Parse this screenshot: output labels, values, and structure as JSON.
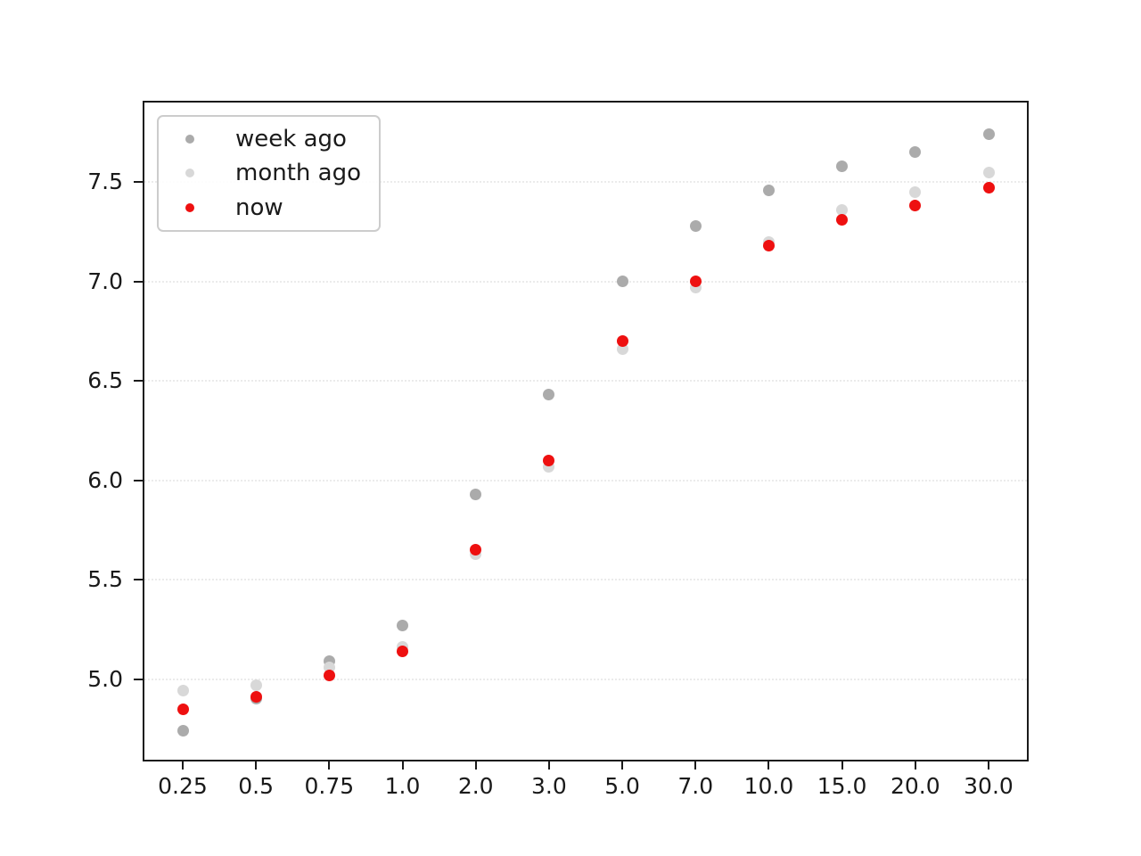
{
  "figure": {
    "background": "#ffffff",
    "frame_color": "#1a1a1a",
    "gridline_color": "#ebebeb"
  },
  "chart_data": {
    "type": "scatter",
    "title": "",
    "xlabel": "",
    "ylabel": "",
    "categories": [
      "0.25",
      "0.5",
      "0.75",
      "1.0",
      "2.0",
      "3.0",
      "5.0",
      "7.0",
      "10.0",
      "15.0",
      "20.0",
      "30.0"
    ],
    "y_tick_labels": [
      "5.0",
      "5.5",
      "6.0",
      "6.5",
      "7.0",
      "7.5"
    ],
    "y_tick_values": [
      5.0,
      5.5,
      6.0,
      6.5,
      7.0,
      7.5
    ],
    "ylim": [
      4.59,
      7.9
    ],
    "grid": "horizontal dotted",
    "legend_position": "upper left",
    "series": [
      {
        "name": "week ago",
        "color": "#ababab",
        "values": [
          4.74,
          4.9,
          5.09,
          5.27,
          5.93,
          6.43,
          7.0,
          7.28,
          7.46,
          7.58,
          7.65,
          7.74
        ]
      },
      {
        "name": "month ago",
        "color": "#d8d8d8",
        "values": [
          4.94,
          4.97,
          5.06,
          5.16,
          5.63,
          6.07,
          6.66,
          6.97,
          7.2,
          7.36,
          7.45,
          7.55
        ]
      },
      {
        "name": "now",
        "color": "#ee1010",
        "values": [
          4.85,
          4.91,
          5.02,
          5.14,
          5.65,
          6.1,
          6.7,
          7.0,
          7.18,
          7.31,
          7.38,
          7.47
        ]
      }
    ]
  }
}
